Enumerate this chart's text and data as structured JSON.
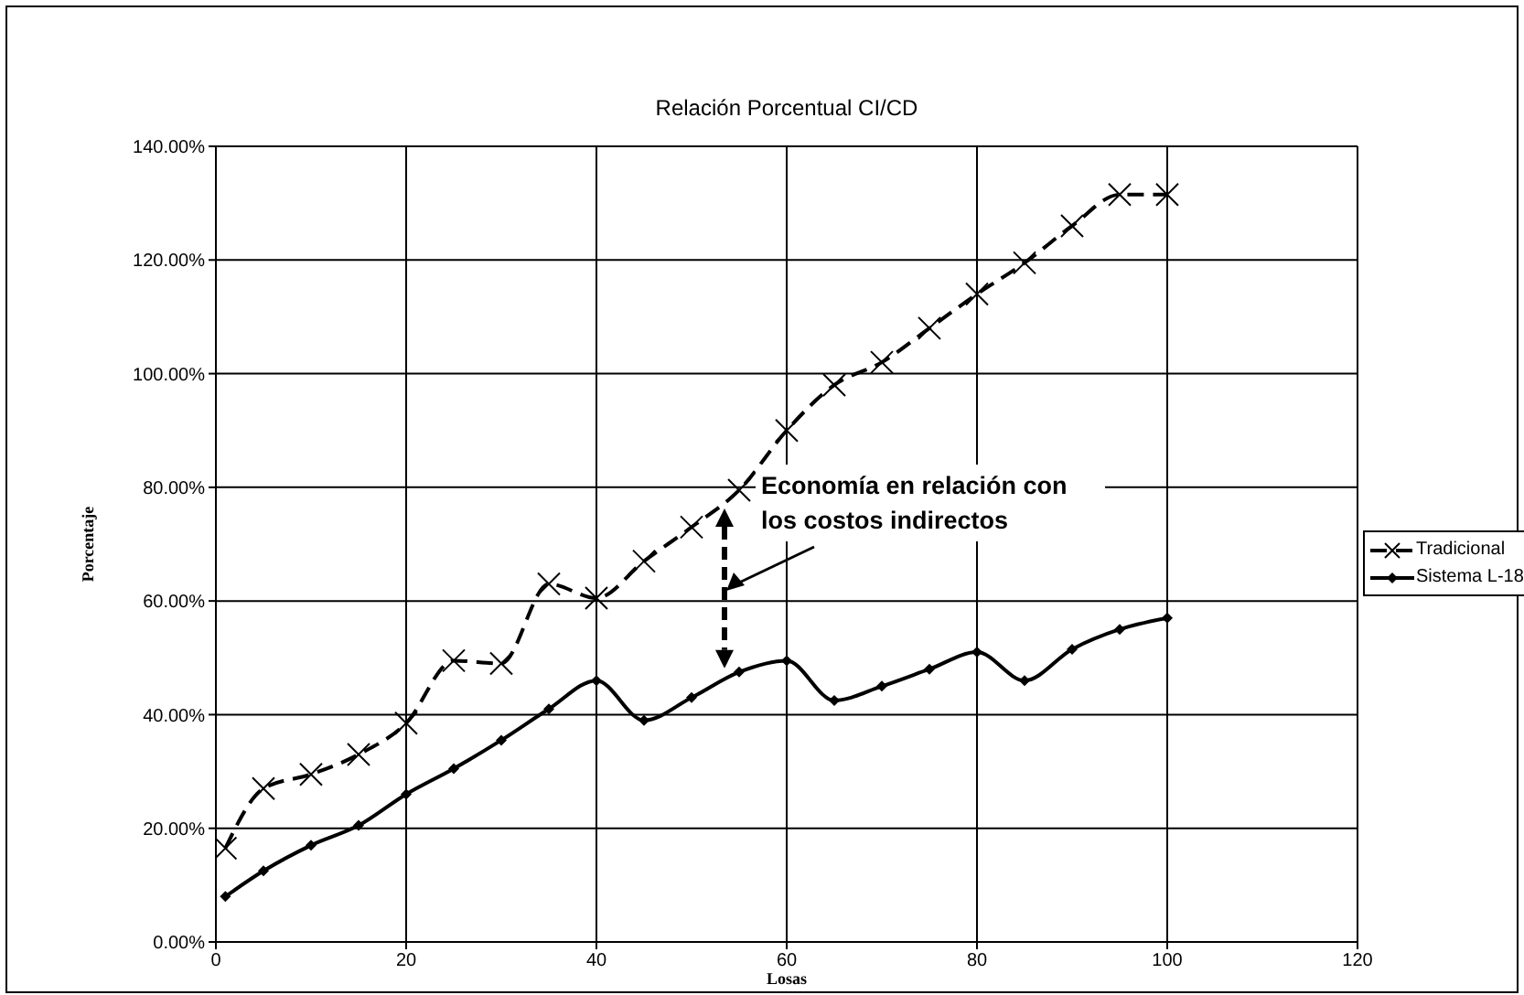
{
  "chart_data": {
    "type": "line",
    "title": "Relación Porcentual CI/CD",
    "xlabel": "Losas",
    "ylabel": "Porcentaje",
    "annotations": [
      {
        "text": "Economía en relación con los costos indirectos",
        "x": 55,
        "y": 79.5
      }
    ],
    "xlim": [
      0,
      120
    ],
    "xticks": [
      0,
      20,
      40,
      60,
      80,
      100,
      120
    ],
    "ylim": [
      0,
      140
    ],
    "yticks": [
      {
        "value": 0,
        "label": "0.00%"
      },
      {
        "value": 20,
        "label": "20.00%"
      },
      {
        "value": 40,
        "label": "40.00%"
      },
      {
        "value": 60,
        "label": "60.00%"
      },
      {
        "value": 80,
        "label": "80.00%"
      },
      {
        "value": 100,
        "label": "100.00%"
      },
      {
        "value": 120,
        "label": "120.00%"
      },
      {
        "value": 140,
        "label": "140.00%"
      }
    ],
    "grid": true,
    "legend": "right",
    "x": [
      1,
      5,
      10,
      15,
      20,
      25,
      30,
      35,
      40,
      45,
      50,
      55,
      60,
      65,
      70,
      75,
      80,
      85,
      90,
      95,
      100
    ],
    "series": [
      {
        "name": "Tradicional",
        "color": "#000000",
        "marker": "cross",
        "line_style": "dashed",
        "values": [
          16.5,
          27,
          29.5,
          33,
          38.5,
          49.5,
          49,
          63,
          60.5,
          67,
          73,
          79.5,
          90,
          98,
          102,
          108,
          114,
          119.5,
          126,
          131.5,
          131.5
        ]
      },
      {
        "name": "Sistema L-18",
        "color": "#000000",
        "marker": "diamond",
        "line_style": "solid",
        "values": [
          8,
          12.5,
          17,
          20.5,
          26,
          30.5,
          35.5,
          41,
          46,
          39,
          43,
          47.5,
          49.5,
          42.5,
          45,
          48,
          51,
          46,
          51.5,
          55,
          57
        ]
      }
    ]
  }
}
